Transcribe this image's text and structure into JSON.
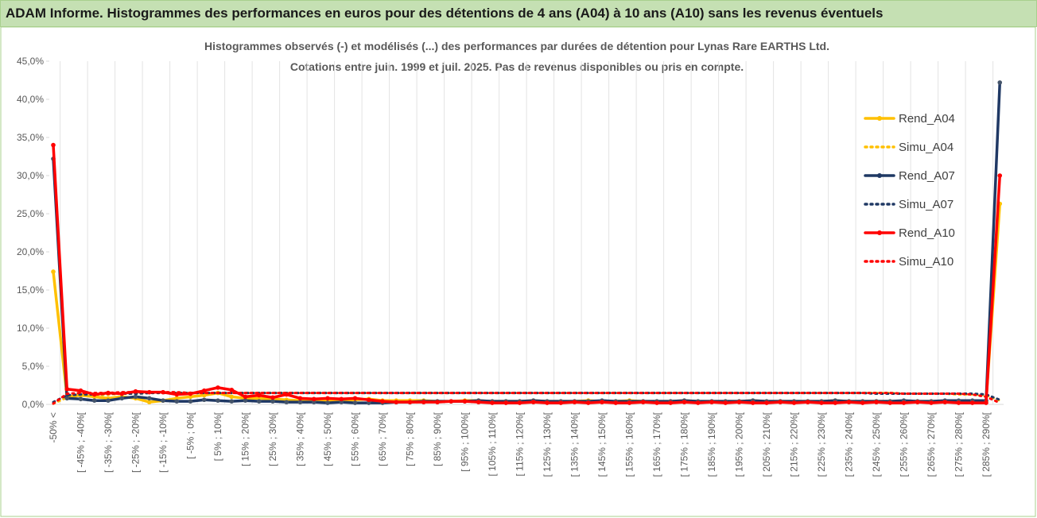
{
  "title": "ADAM Informe. Histogrammes des performances en euros pour des détentions de 4 ans (A04) à 10 ans (A10) sans les revenus éventuels",
  "chart_data": {
    "type": "line",
    "title": "Histogrammes observés (-) et modélisés (...) des performances par durées de détention pour Lynas Rare EARTHS Ltd.",
    "subtitle": "Cotations entre juin. 1999 et juil. 2025. Pas de revenus disponibles ou pris en compte.",
    "categories": [
      "-50% <",
      null,
      "[ -45% ; -40%[",
      null,
      "[ -35% ; -30%[",
      null,
      "[ -25% ; -20%[",
      null,
      "[ -15% ; -10%[",
      null,
      "[ -5% ; 0%[",
      null,
      "[ 5% ; 10%[",
      null,
      "[ 15% ; 20%[",
      null,
      "[ 25% ; 30%[",
      null,
      "[ 35% ; 40%[",
      null,
      "[ 45% ; 50%[",
      null,
      "[ 55% ; 60%[",
      null,
      "[ 65% ; 70%[",
      null,
      "[ 75% ; 80%[",
      null,
      "[ 85% ; 90%[",
      null,
      "[ 95% ; 100%[",
      null,
      "[ 105% ; 110%[",
      null,
      "[ 115% ; 120%[",
      null,
      "[ 125% ; 130%[",
      null,
      "[ 135% ; 140%[",
      null,
      "[ 145% ; 150%[",
      null,
      "[ 155% ; 160%[",
      null,
      "[ 165% ; 170%[",
      null,
      "[ 175% ; 180%[",
      null,
      "[ 185% ; 190%[",
      null,
      "[ 195% ; 200%[",
      null,
      "[ 205% ; 210%[",
      null,
      "[ 215% ; 220%[",
      null,
      "[ 225% ; 230%[",
      null,
      "[ 235% ; 240%[",
      null,
      "[ 245% ; 250%[",
      null,
      "[ 255% ; 260%[",
      null,
      "[ 265% ; 270%[",
      null,
      "[ 275% ; 280%[",
      null,
      "[ 285% ; 290%[",
      null
    ],
    "series": [
      {
        "name": "Rend_A04",
        "color": "#ffc000",
        "style": "solid",
        "values": [
          17.4,
          1.0,
          1.2,
          1.0,
          0.8,
          1.0,
          0.8,
          0.3,
          0.5,
          0.8,
          1.0,
          1.2,
          1.5,
          1.0,
          0.8,
          0.8,
          0.7,
          0.6,
          0.5,
          0.5,
          0.5,
          0.5,
          0.6,
          0.7,
          0.5,
          0.5,
          0.5,
          0.5,
          0.4,
          0.4,
          0.5,
          0.5,
          0.4,
          0.4,
          0.4,
          0.5,
          0.4,
          0.4,
          0.4,
          0.5,
          0.4,
          0.4,
          0.5,
          0.4,
          0.4,
          0.4,
          0.5,
          0.4,
          0.4,
          0.4,
          0.4,
          0.5,
          0.4,
          0.4,
          0.4,
          0.4,
          0.4,
          0.5,
          0.4,
          0.4,
          0.4,
          0.4,
          0.4,
          0.4,
          0.4,
          0.4,
          0.4,
          0.4,
          0.4,
          26.3
        ]
      },
      {
        "name": "Simu_A04",
        "color": "#ffc000",
        "style": "dotted",
        "values": [
          0.1,
          0.9,
          1.1,
          1.2,
          1.3,
          1.4,
          1.4,
          1.5,
          1.5,
          1.5,
          1.5,
          1.5,
          1.5,
          1.5,
          1.5,
          1.5,
          1.5,
          1.5,
          1.5,
          1.5,
          1.5,
          1.5,
          1.5,
          1.5,
          1.5,
          1.5,
          1.5,
          1.5,
          1.5,
          1.5,
          1.5,
          1.5,
          1.5,
          1.5,
          1.5,
          1.5,
          1.5,
          1.5,
          1.5,
          1.5,
          1.5,
          1.5,
          1.5,
          1.5,
          1.5,
          1.5,
          1.5,
          1.5,
          1.5,
          1.5,
          1.5,
          1.5,
          1.5,
          1.5,
          1.5,
          1.5,
          1.5,
          1.5,
          1.5,
          1.5,
          1.5,
          1.5,
          1.4,
          1.4,
          1.4,
          1.4,
          1.3,
          1.3,
          1.2,
          0.5
        ]
      },
      {
        "name": "Rend_A07",
        "color": "#1f3864",
        "style": "solid",
        "values": [
          32.2,
          0.8,
          0.7,
          0.5,
          0.5,
          0.8,
          1.0,
          0.8,
          0.5,
          0.4,
          0.4,
          0.6,
          0.5,
          0.4,
          0.5,
          0.4,
          0.4,
          0.3,
          0.3,
          0.3,
          0.2,
          0.3,
          0.2,
          0.2,
          0.2,
          0.3,
          0.3,
          0.4,
          0.4,
          0.4,
          0.4,
          0.5,
          0.4,
          0.4,
          0.4,
          0.5,
          0.4,
          0.4,
          0.4,
          0.4,
          0.5,
          0.4,
          0.4,
          0.4,
          0.4,
          0.4,
          0.5,
          0.4,
          0.4,
          0.4,
          0.4,
          0.5,
          0.4,
          0.4,
          0.4,
          0.4,
          0.4,
          0.5,
          0.4,
          0.4,
          0.4,
          0.4,
          0.5,
          0.4,
          0.4,
          0.5,
          0.5,
          0.5,
          0.5,
          42.2
        ]
      },
      {
        "name": "Simu_A07",
        "color": "#1f3864",
        "style": "dotted",
        "values": [
          0.3,
          1.2,
          1.3,
          1.3,
          1.4,
          1.4,
          1.4,
          1.5,
          1.5,
          1.5,
          1.5,
          1.5,
          1.5,
          1.5,
          1.5,
          1.5,
          1.5,
          1.5,
          1.5,
          1.5,
          1.5,
          1.5,
          1.5,
          1.5,
          1.5,
          1.5,
          1.5,
          1.5,
          1.5,
          1.5,
          1.5,
          1.5,
          1.5,
          1.5,
          1.5,
          1.5,
          1.5,
          1.5,
          1.5,
          1.5,
          1.5,
          1.5,
          1.5,
          1.5,
          1.5,
          1.5,
          1.5,
          1.5,
          1.5,
          1.5,
          1.5,
          1.5,
          1.5,
          1.5,
          1.5,
          1.5,
          1.5,
          1.5,
          1.5,
          1.5,
          1.4,
          1.4,
          1.4,
          1.4,
          1.4,
          1.4,
          1.4,
          1.4,
          1.3,
          0.6
        ]
      },
      {
        "name": "Rend_A10",
        "color": "#ff0000",
        "style": "solid",
        "values": [
          34.0,
          2.0,
          1.8,
          1.3,
          1.5,
          1.4,
          1.7,
          1.6,
          1.6,
          1.3,
          1.4,
          1.8,
          2.2,
          1.9,
          1.0,
          1.2,
          0.9,
          1.3,
          0.8,
          0.7,
          0.8,
          0.7,
          0.8,
          0.6,
          0.4,
          0.3,
          0.3,
          0.3,
          0.3,
          0.4,
          0.4,
          0.3,
          0.2,
          0.2,
          0.2,
          0.3,
          0.2,
          0.2,
          0.3,
          0.2,
          0.3,
          0.2,
          0.2,
          0.3,
          0.2,
          0.2,
          0.3,
          0.2,
          0.3,
          0.2,
          0.3,
          0.2,
          0.2,
          0.3,
          0.2,
          0.3,
          0.2,
          0.2,
          0.3,
          0.2,
          0.3,
          0.2,
          0.2,
          0.3,
          0.2,
          0.3,
          0.2,
          0.2,
          0.2,
          30.0
        ]
      },
      {
        "name": "Simu_A10",
        "color": "#ff0000",
        "style": "dotted",
        "values": [
          0.1,
          1.4,
          1.5,
          1.5,
          1.5,
          1.6,
          1.6,
          1.6,
          1.6,
          1.6,
          1.5,
          1.5,
          1.5,
          1.5,
          1.5,
          1.5,
          1.5,
          1.5,
          1.5,
          1.5,
          1.5,
          1.5,
          1.5,
          1.5,
          1.5,
          1.5,
          1.5,
          1.5,
          1.5,
          1.5,
          1.5,
          1.5,
          1.5,
          1.5,
          1.5,
          1.5,
          1.5,
          1.5,
          1.5,
          1.5,
          1.5,
          1.5,
          1.5,
          1.5,
          1.5,
          1.5,
          1.5,
          1.5,
          1.5,
          1.5,
          1.5,
          1.5,
          1.5,
          1.5,
          1.5,
          1.5,
          1.5,
          1.5,
          1.5,
          1.5,
          1.5,
          1.5,
          1.4,
          1.4,
          1.4,
          1.4,
          1.4,
          1.3,
          1.0,
          0.2
        ]
      }
    ],
    "ylim": [
      0,
      45
    ],
    "yticks": [
      {
        "value": 0,
        "label": "0,0%"
      },
      {
        "value": 5,
        "label": "5,0%"
      },
      {
        "value": 10,
        "label": "10,0%"
      },
      {
        "value": 15,
        "label": "15,0%"
      },
      {
        "value": 20,
        "label": "20,0%"
      },
      {
        "value": 25,
        "label": "25,0%"
      },
      {
        "value": 30,
        "label": "30,0%"
      },
      {
        "value": 35,
        "label": "35,0%"
      },
      {
        "value": 40,
        "label": "40,0%"
      },
      {
        "value": 45,
        "label": "45,0%"
      }
    ],
    "legend": "upper right"
  }
}
